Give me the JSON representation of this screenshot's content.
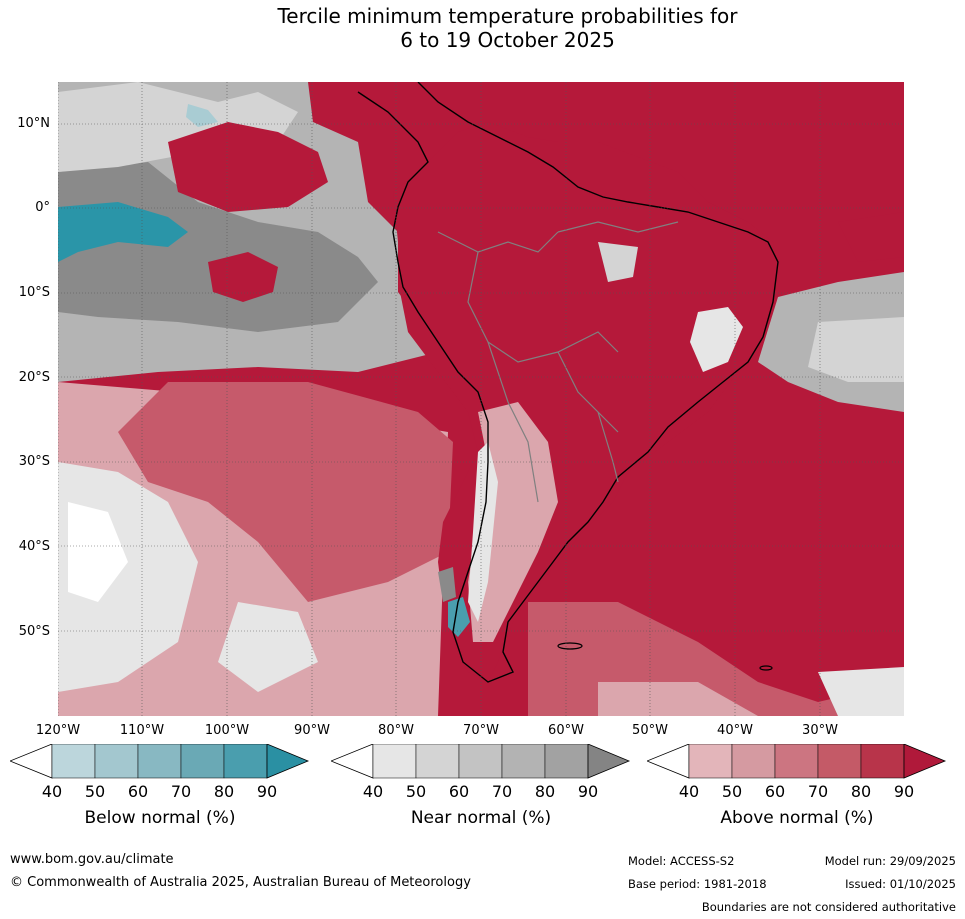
{
  "title": {
    "line1": "Tercile minimum temperature probabilities for",
    "line2": "6 to 19 October 2025"
  },
  "map": {
    "lat_labels": [
      "10°N",
      "0°",
      "10°S",
      "20°S",
      "30°S",
      "40°S",
      "50°S"
    ],
    "lon_labels": [
      "120°W",
      "110°W",
      "100°W",
      "90°W",
      "80°W",
      "70°W",
      "60°W",
      "50°W",
      "40°W",
      "30°W"
    ],
    "colors": {
      "ocean_above_dark": "#b5193a",
      "above_mid": "#c65a6b",
      "above_light": "#dba6ad",
      "near_dark": "#8a8a8a",
      "near_mid": "#b4b4b4",
      "near_light": "#e6e6e6",
      "below_dark": "#2a95a8",
      "below_light": "#a9ccd3",
      "coast": "#000000",
      "border": "#808080",
      "grid": "#555555"
    }
  },
  "colorbars": [
    {
      "name": "below",
      "title": "Below normal (%)",
      "ticks": [
        "40",
        "50",
        "60",
        "70",
        "80",
        "90"
      ],
      "colors": [
        "#bcd6dc",
        "#a3c7cf",
        "#88b8c2",
        "#6aa9b5",
        "#4a9eae",
        "#2a90a3"
      ],
      "start_color": "#ffffff"
    },
    {
      "name": "near",
      "title": "Near normal (%)",
      "ticks": [
        "40",
        "50",
        "60",
        "70",
        "80",
        "90"
      ],
      "colors": [
        "#e6e6e6",
        "#d4d4d4",
        "#c3c3c3",
        "#b3b3b3",
        "#a2a2a2",
        "#848484"
      ],
      "start_color": "#ffffff"
    },
    {
      "name": "above",
      "title": "Above normal (%)",
      "ticks": [
        "40",
        "50",
        "60",
        "70",
        "80",
        "90"
      ],
      "colors": [
        "#e3b5ba",
        "#d59aa1",
        "#cc7581",
        "#c45a67",
        "#b8344a",
        "#b0193a"
      ],
      "start_color": "#ffffff"
    }
  ],
  "footer": {
    "url": "www.bom.gov.au/climate",
    "copyright": "© Commonwealth of Australia 2025, Australian Bureau of Meteorology",
    "model": "Model: ACCESS-S2",
    "model_run": "Model run: 29/09/2025",
    "base_period": "Base period: 1981-2018",
    "issued": "Issued: 01/10/2025",
    "disclaimer": "Boundaries are not considered authoritative"
  }
}
